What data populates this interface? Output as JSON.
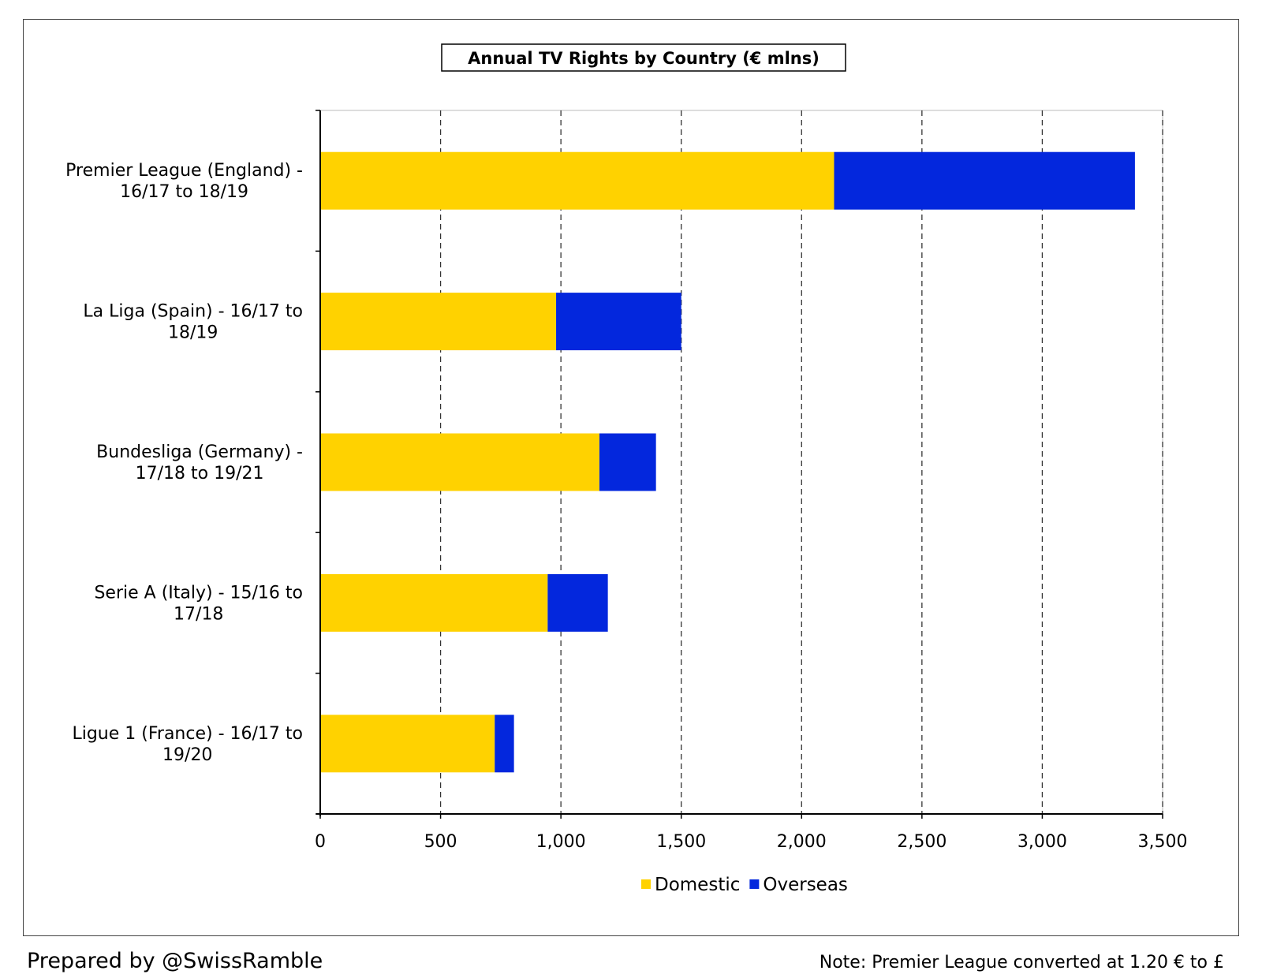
{
  "chart_data": {
    "type": "bar",
    "orientation": "horizontal",
    "stacked": true,
    "title": "Annual TV Rights by Country (€ mlns)",
    "categories": [
      [
        "Premier League (England) -",
        "16/17 to 18/19"
      ],
      [
        "La Liga (Spain) - 16/17 to",
        "18/19"
      ],
      [
        "Bundesliga (Germany) -",
        "17/18 to 19/21"
      ],
      [
        "Serie A (Italy) - 15/16 to",
        "17/18"
      ],
      [
        "Ligue 1 (France) - 16/17 to",
        "19/20"
      ]
    ],
    "series": [
      {
        "name": "Domestic",
        "color": "#FFD200",
        "values": [
          2135,
          980,
          1160,
          945,
          725
        ]
      },
      {
        "name": "Overseas",
        "color": "#0327DD",
        "values": [
          1250,
          520,
          235,
          250,
          80
        ]
      }
    ],
    "xlim": [
      0,
      3500
    ],
    "xticks": [
      0,
      500,
      1000,
      1500,
      2000,
      2500,
      3000,
      3500
    ],
    "xtick_labels": [
      "0",
      "500",
      "1,000",
      "1,500",
      "2,000",
      "2,500",
      "3,000",
      "3,500"
    ],
    "grid": "vertical dashed",
    "legend_position": "bottom-center"
  },
  "footer": {
    "prepared_by": "Prepared by @SwissRamble",
    "note": "Note: Premier League converted at 1.20 € to £"
  }
}
